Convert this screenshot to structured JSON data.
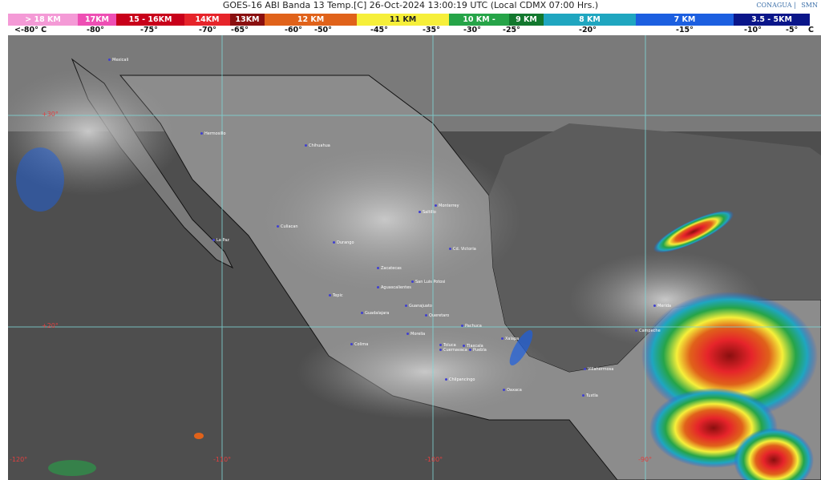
{
  "header": {
    "title": "GOES-16 ABI Banda 13 Temp.[C] 26-Oct-2024 13:00:19 UTC (Local CDMX  07:00 Hrs.)",
    "logos": [
      "CONAGUA",
      "SMN"
    ]
  },
  "scale": [
    {
      "label": "> 18 KM",
      "color": "#f49ad6"
    },
    {
      "label": "17KM",
      "color": "#ee4fb4"
    },
    {
      "label": "15 - 16KM",
      "color": "#c8001a"
    },
    {
      "label": "14KM",
      "color": "#e6242a"
    },
    {
      "label": "13KM",
      "color": "#8a0f0f"
    },
    {
      "label": "12 KM",
      "color": "#e0621a"
    },
    {
      "label": "11 KM",
      "color": "#f6ef3a"
    },
    {
      "label": "10 KM -",
      "color": "#26a448"
    },
    {
      "label": "9 KM",
      "color": "#12782e"
    },
    {
      "label": "8 KM",
      "color": "#1fa6c0"
    },
    {
      "label": "7 KM",
      "color": "#1c5fe0"
    },
    {
      "label": "3.5 - 5KM",
      "color": "#0a168a"
    }
  ],
  "temps": [
    "<-80° C",
    "-80°",
    "-75°",
    "-70°",
    "-65°",
    "-60°",
    "-50°",
    "-45°",
    "-35°",
    "-30°",
    "-25°",
    "-20°",
    "-15°",
    "-10°",
    "-5°",
    "C"
  ],
  "gridlabels": [
    "+30°",
    "+20°",
    "-120°",
    "-110°",
    "-100°",
    "-90°"
  ],
  "cities": [
    "Mexicali",
    "Hermosillo",
    "Chihuahua",
    "Culiacan",
    "La Paz",
    "Durango",
    "Saltillo",
    "Monterrey",
    "Cd. Victoria",
    "Zacatecas",
    "San Luis Potosi",
    "Aguascalientes",
    "Tepic",
    "Guadalajara",
    "Guanajuato",
    "Queretaro",
    "Pachuca",
    "Morelia",
    "Colima",
    "Toluca",
    "Tlaxcala",
    "Cuernavaca",
    "Puebla",
    "Xalapa",
    "Chilpancingo",
    "Oaxaca",
    "Villahermosa",
    "Tuxtla",
    "Campeche",
    "Merida"
  ]
}
